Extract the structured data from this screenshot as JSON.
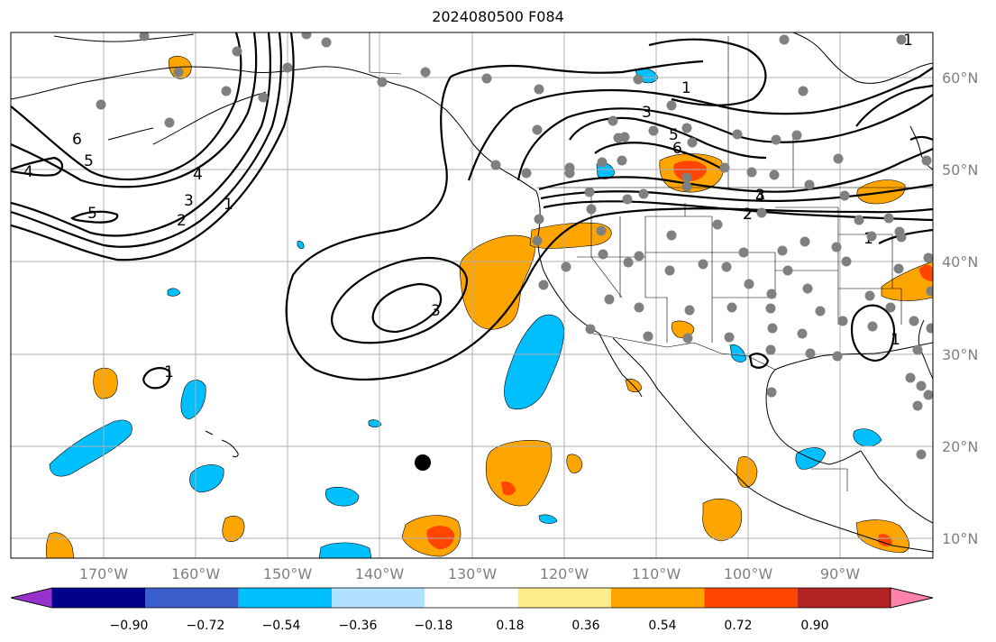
{
  "title": "2024080500 F084",
  "lon_labels": [
    "170°W",
    "160°W",
    "150°W",
    "140°W",
    "130°W",
    "120°W",
    "110°W",
    "100°W",
    "90°W"
  ],
  "lat_labels": [
    "60°N",
    "50°N",
    "40°N",
    "30°N",
    "20°N",
    "10°N"
  ],
  "colorbar": {
    "colors": [
      "#9932cc",
      "#00008b",
      "#3a5fcd",
      "#00bfff",
      "#b0e2ff",
      "#ffffff",
      "#ffec8b",
      "#ffa500",
      "#ff4500",
      "#b22222",
      "#ff82ab"
    ],
    "tick_labels": [
      "−0.90",
      "−0.72",
      "−0.54",
      "−0.36",
      "−0.18",
      "0.18",
      "0.36",
      "0.54",
      "0.72",
      "0.90"
    ]
  },
  "contour_labels": [
    "1",
    "2",
    "3",
    "4",
    "5",
    "6",
    "5",
    "4",
    "3",
    "2",
    "1",
    "3",
    "1",
    "3",
    "5",
    "6",
    "4",
    "2",
    "1",
    "1",
    "1"
  ],
  "colors": {
    "orange": "#ffa500",
    "red_orange": "#ff4500",
    "light_blue": "#00bfff",
    "gray_station": "#808080",
    "grid": "#b0b0b0"
  }
}
